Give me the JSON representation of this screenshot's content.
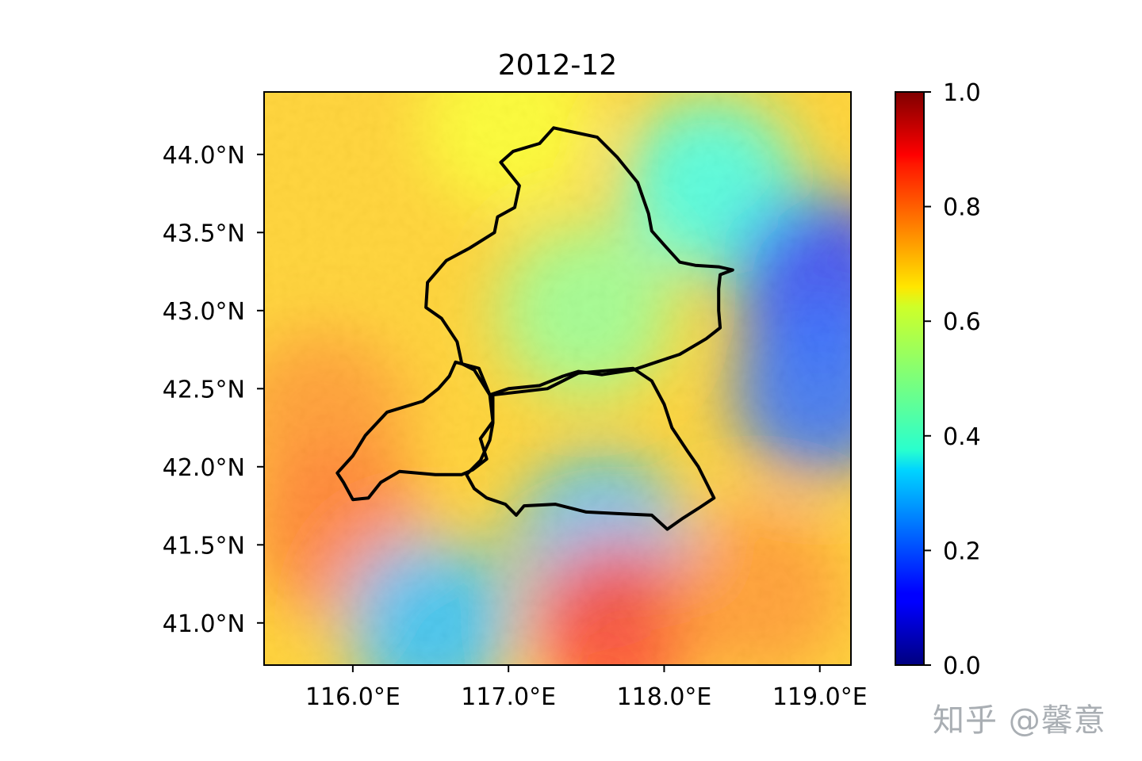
{
  "chart_data": {
    "type": "heatmap",
    "title": "2012-12",
    "xlabel": "",
    "ylabel": "",
    "xlim": [
      115.43,
      119.2
    ],
    "ylim": [
      40.73,
      44.4
    ],
    "x_ticks": [
      {
        "value": 116.0,
        "label": "116.0°E"
      },
      {
        "value": 117.0,
        "label": "117.0°E"
      },
      {
        "value": 118.0,
        "label": "118.0°E"
      },
      {
        "value": 119.0,
        "label": "119.0°E"
      }
    ],
    "y_ticks": [
      {
        "value": 41.0,
        "label": "41.0°N"
      },
      {
        "value": 41.5,
        "label": "41.5°N"
      },
      {
        "value": 42.0,
        "label": "42.0°N"
      },
      {
        "value": 42.5,
        "label": "42.5°N"
      },
      {
        "value": 43.0,
        "label": "43.0°N"
      },
      {
        "value": 43.5,
        "label": "43.5°N"
      },
      {
        "value": 44.0,
        "label": "44.0°N"
      }
    ],
    "colorbar": {
      "colormap": "jet",
      "vmin": 0.0,
      "vmax": 1.0,
      "ticks": [
        {
          "value": 0.0,
          "label": "0.0"
        },
        {
          "value": 0.2,
          "label": "0.2"
        },
        {
          "value": 0.4,
          "label": "0.4"
        },
        {
          "value": 0.6,
          "label": "0.6"
        },
        {
          "value": 0.8,
          "label": "0.8"
        },
        {
          "value": 1.0,
          "label": "1.0"
        }
      ]
    },
    "grid": false,
    "field_regions": [
      {
        "lon": 115.8,
        "lat": 42.3,
        "value": 0.75
      },
      {
        "lon": 115.9,
        "lat": 41.6,
        "value": 0.78
      },
      {
        "lon": 117.5,
        "lat": 43.0,
        "value": 0.5
      },
      {
        "lon": 118.3,
        "lat": 43.8,
        "value": 0.4
      },
      {
        "lon": 119.0,
        "lat": 43.2,
        "value": 0.15
      },
      {
        "lon": 119.0,
        "lat": 42.5,
        "value": 0.2
      },
      {
        "lon": 116.5,
        "lat": 41.0,
        "value": 0.3
      },
      {
        "lon": 117.6,
        "lat": 41.5,
        "value": 0.3
      },
      {
        "lon": 117.7,
        "lat": 41.0,
        "value": 0.85
      },
      {
        "lon": 118.6,
        "lat": 41.2,
        "value": 0.75
      },
      {
        "lon": 117.0,
        "lat": 44.2,
        "value": 0.62
      }
    ],
    "boundaries": [
      {
        "name": "",
        "points": [
          [
            117.29,
            44.17
          ],
          [
            117.57,
            44.11
          ],
          [
            117.7,
            43.98
          ],
          [
            117.83,
            43.82
          ],
          [
            117.9,
            43.62
          ],
          [
            117.92,
            43.51
          ],
          [
            118.0,
            43.42
          ],
          [
            118.1,
            43.31
          ],
          [
            118.2,
            43.29
          ],
          [
            118.35,
            43.28
          ],
          [
            118.44,
            43.26
          ],
          [
            118.36,
            43.23
          ],
          [
            118.35,
            43.14
          ],
          [
            118.35,
            43.0
          ],
          [
            118.36,
            42.89
          ],
          [
            118.27,
            42.82
          ],
          [
            118.1,
            42.72
          ],
          [
            117.95,
            42.67
          ],
          [
            117.8,
            42.62
          ],
          [
            117.6,
            42.59
          ],
          [
            117.45,
            42.61
          ],
          [
            117.35,
            42.58
          ],
          [
            117.2,
            42.52
          ],
          [
            117.0,
            42.5
          ],
          [
            116.88,
            42.46
          ],
          [
            116.78,
            42.62
          ],
          [
            116.7,
            42.66
          ],
          [
            116.67,
            42.8
          ],
          [
            116.57,
            42.95
          ],
          [
            116.47,
            43.02
          ],
          [
            116.48,
            43.18
          ],
          [
            116.6,
            43.32
          ],
          [
            116.75,
            43.4
          ],
          [
            116.91,
            43.5
          ],
          [
            116.93,
            43.6
          ],
          [
            117.04,
            43.66
          ],
          [
            117.07,
            43.8
          ],
          [
            116.95,
            43.95
          ],
          [
            117.03,
            44.02
          ],
          [
            117.2,
            44.07
          ],
          [
            117.29,
            44.17
          ]
        ]
      },
      {
        "name": "",
        "points": [
          [
            116.66,
            42.67
          ],
          [
            116.81,
            42.63
          ],
          [
            116.88,
            42.46
          ],
          [
            116.9,
            42.29
          ],
          [
            116.82,
            42.18
          ],
          [
            116.86,
            42.05
          ],
          [
            116.77,
            41.98
          ],
          [
            116.7,
            41.95
          ],
          [
            116.53,
            41.95
          ],
          [
            116.3,
            41.97
          ],
          [
            116.18,
            41.9
          ],
          [
            116.1,
            41.8
          ],
          [
            116.0,
            41.79
          ],
          [
            115.94,
            41.9
          ],
          [
            115.9,
            41.96
          ],
          [
            116.0,
            42.07
          ],
          [
            116.08,
            42.2
          ],
          [
            116.22,
            42.35
          ],
          [
            116.45,
            42.42
          ],
          [
            116.55,
            42.5
          ],
          [
            116.62,
            42.58
          ],
          [
            116.66,
            42.67
          ]
        ]
      },
      {
        "name": "",
        "points": [
          [
            116.9,
            42.46
          ],
          [
            117.25,
            42.5
          ],
          [
            117.45,
            42.6
          ],
          [
            117.8,
            42.63
          ],
          [
            117.92,
            42.55
          ],
          [
            118.0,
            42.4
          ],
          [
            118.05,
            42.25
          ],
          [
            118.15,
            42.1
          ],
          [
            118.22,
            42.0
          ],
          [
            118.28,
            41.88
          ],
          [
            118.32,
            41.8
          ],
          [
            118.23,
            41.74
          ],
          [
            118.12,
            41.67
          ],
          [
            118.02,
            41.6
          ],
          [
            117.92,
            41.69
          ],
          [
            117.7,
            41.7
          ],
          [
            117.5,
            41.71
          ],
          [
            117.3,
            41.76
          ],
          [
            117.1,
            41.75
          ],
          [
            117.05,
            41.69
          ],
          [
            116.98,
            41.76
          ],
          [
            116.86,
            41.8
          ],
          [
            116.78,
            41.86
          ],
          [
            116.73,
            41.95
          ],
          [
            116.82,
            42.04
          ],
          [
            116.88,
            42.17
          ],
          [
            116.9,
            42.28
          ],
          [
            116.9,
            42.46
          ]
        ]
      }
    ]
  },
  "watermark": "知乎 @馨意"
}
